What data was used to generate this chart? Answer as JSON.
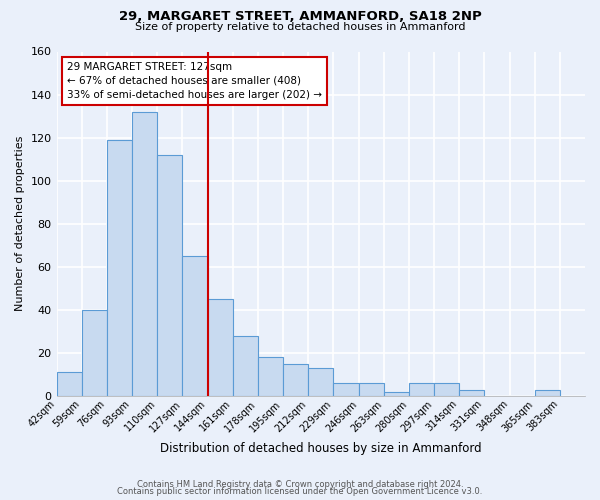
{
  "title": "29, MARGARET STREET, AMMANFORD, SA18 2NP",
  "subtitle": "Size of property relative to detached houses in Ammanford",
  "xlabel": "Distribution of detached houses by size in Ammanford",
  "ylabel": "Number of detached properties",
  "bar_labels": [
    "42sqm",
    "59sqm",
    "76sqm",
    "93sqm",
    "110sqm",
    "127sqm",
    "144sqm",
    "161sqm",
    "178sqm",
    "195sqm",
    "212sqm",
    "229sqm",
    "246sqm",
    "263sqm",
    "280sqm",
    "297sqm",
    "314sqm",
    "331sqm",
    "348sqm",
    "365sqm",
    "383sqm"
  ],
  "bar_heights": [
    11,
    40,
    119,
    132,
    112,
    65,
    45,
    28,
    18,
    15,
    13,
    6,
    6,
    2,
    6,
    6,
    3,
    0,
    0,
    3,
    0
  ],
  "bar_color": "#c8daf0",
  "bar_edge_color": "#5b9bd5",
  "vline_color": "#cc0000",
  "annotation_text": "29 MARGARET STREET: 127sqm\n← 67% of detached houses are smaller (408)\n33% of semi-detached houses are larger (202) →",
  "annotation_box_color": "white",
  "annotation_box_edge_color": "#cc0000",
  "ylim": [
    0,
    160
  ],
  "yticks": [
    0,
    20,
    40,
    60,
    80,
    100,
    120,
    140,
    160
  ],
  "bg_color": "#eaf0fa",
  "grid_color": "#ffffff",
  "footer_line1": "Contains HM Land Registry data © Crown copyright and database right 2024.",
  "footer_line2": "Contains public sector information licensed under the Open Government Licence v3.0."
}
